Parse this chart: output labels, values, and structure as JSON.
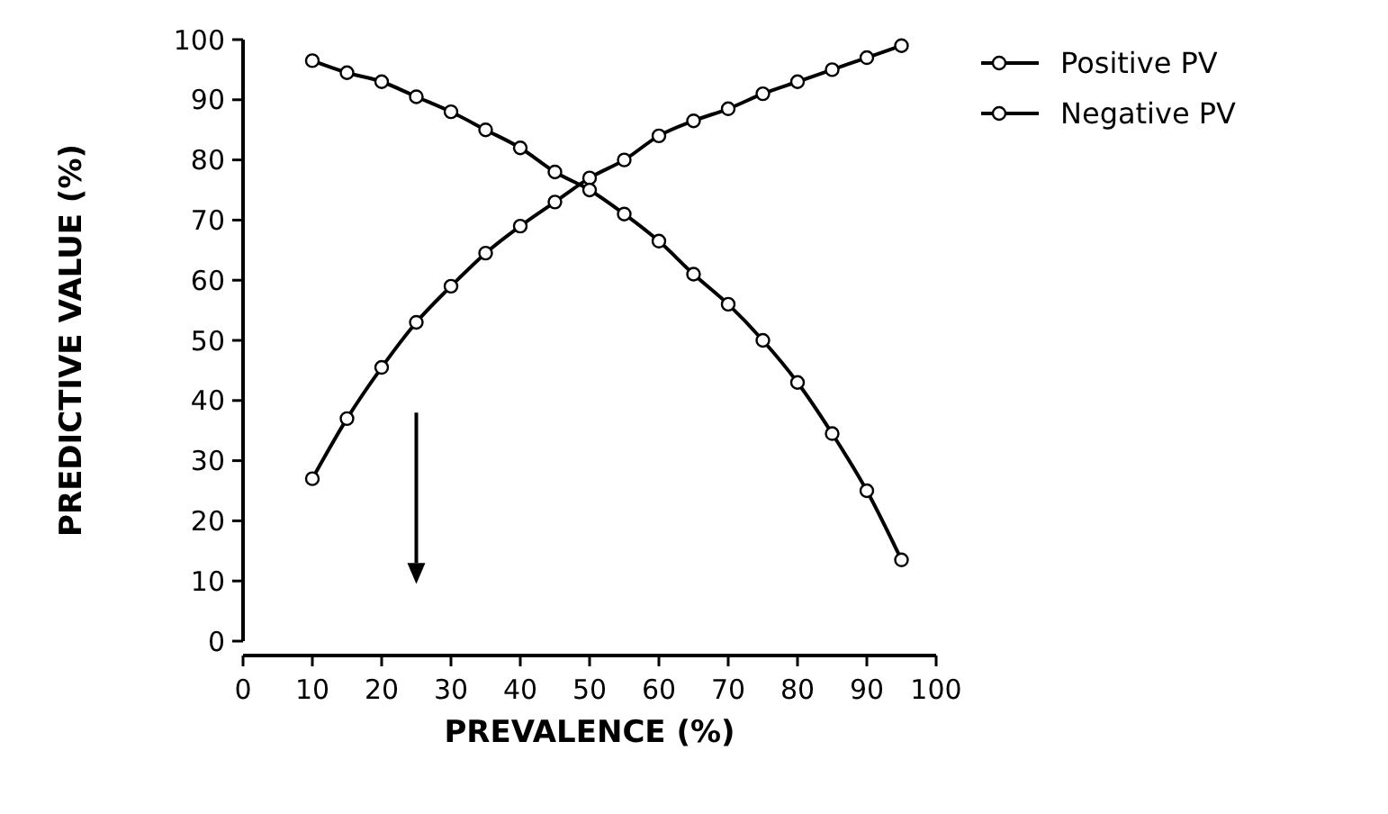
{
  "chart_data": {
    "type": "line",
    "xlabel": "PREVALENCE (%)",
    "ylabel": "PREDICTIVE VALUE (%)",
    "x": [
      10,
      15,
      20,
      25,
      30,
      35,
      40,
      45,
      50,
      55,
      60,
      65,
      70,
      75,
      80,
      85,
      90,
      95
    ],
    "series": [
      {
        "name": "Positive PV",
        "color": "#000000",
        "values": [
          27,
          37,
          45.5,
          53,
          59,
          64.5,
          69,
          73,
          77,
          80,
          84,
          86.5,
          88.5,
          91,
          93,
          95,
          97,
          99
        ]
      },
      {
        "name": "Negative PV",
        "color": "#000000",
        "values": [
          96.5,
          94.5,
          93,
          90.5,
          88,
          85,
          82,
          78,
          75,
          71,
          66.5,
          61,
          56,
          50,
          43,
          34.5,
          25,
          13.5
        ]
      }
    ],
    "xlim": [
      0,
      100
    ],
    "ylim": [
      0,
      100
    ],
    "xticks": [
      0,
      10,
      20,
      30,
      40,
      50,
      60,
      70,
      80,
      90,
      100
    ],
    "yticks": [
      0,
      10,
      20,
      30,
      40,
      50,
      60,
      70,
      80,
      90,
      100
    ],
    "grid": false,
    "legend": "right",
    "marker": "circle",
    "line_style": "solid"
  }
}
